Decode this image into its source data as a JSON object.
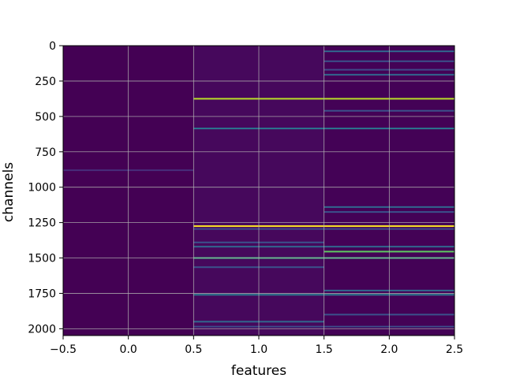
{
  "chart_data": {
    "type": "heatmap",
    "title": "",
    "xlabel": "features",
    "ylabel": "channels",
    "xlim": [
      -0.5,
      2.5
    ],
    "ylim": [
      2048,
      0
    ],
    "y_inverted": true,
    "colormap": "viridis",
    "grid": true,
    "x_ticks": [
      -0.5,
      0.0,
      0.5,
      1.0,
      1.5,
      2.0,
      2.5
    ],
    "x_tick_labels": [
      "−0.5",
      "0.0",
      "0.5",
      "1.0",
      "1.5",
      "2.0",
      "2.5"
    ],
    "y_ticks": [
      0,
      250,
      500,
      750,
      1000,
      1250,
      1500,
      1750,
      2000
    ],
    "y_tick_labels": [
      "0",
      "250",
      "500",
      "750",
      "1000",
      "1250",
      "1500",
      "1750",
      "2000"
    ],
    "columns": [
      0,
      1,
      2
    ],
    "column_background": [
      "#440154",
      "#46085c",
      "#440256"
    ],
    "highlight_rows": [
      {
        "channel": 40,
        "columns": [
          2
        ],
        "color": "#31688e"
      },
      {
        "channel": 110,
        "columns": [
          2
        ],
        "color": "#3b528b"
      },
      {
        "channel": 170,
        "columns": [
          2
        ],
        "color": "#3e4a89"
      },
      {
        "channel": 205,
        "columns": [
          2
        ],
        "color": "#31688e"
      },
      {
        "channel": 375,
        "columns": [
          1,
          2
        ],
        "color": "#b8de29"
      },
      {
        "channel": 460,
        "columns": [
          2
        ],
        "color": "#3b528b"
      },
      {
        "channel": 585,
        "columns": [
          1,
          2
        ],
        "color": "#2a788e"
      },
      {
        "channel": 880,
        "columns": [
          0
        ],
        "color": "#472d7b"
      },
      {
        "channel": 1140,
        "columns": [
          2
        ],
        "color": "#31688e"
      },
      {
        "channel": 1175,
        "columns": [
          2
        ],
        "color": "#3b528b"
      },
      {
        "channel": 1275,
        "columns": [
          1,
          2
        ],
        "color": "#fde725"
      },
      {
        "channel": 1295,
        "columns": [
          1,
          2
        ],
        "color": "#3e4a89"
      },
      {
        "channel": 1390,
        "columns": [
          1
        ],
        "color": "#3b528b"
      },
      {
        "channel": 1420,
        "columns": [
          1,
          2
        ],
        "color": "#31688e"
      },
      {
        "channel": 1455,
        "columns": [
          2
        ],
        "color": "#5ec962"
      },
      {
        "channel": 1500,
        "columns": [
          1,
          2
        ],
        "color": "#35b779"
      },
      {
        "channel": 1565,
        "columns": [
          1
        ],
        "color": "#3b528b"
      },
      {
        "channel": 1730,
        "columns": [
          2
        ],
        "color": "#31688e"
      },
      {
        "channel": 1760,
        "columns": [
          1,
          2
        ],
        "color": "#2a788e"
      },
      {
        "channel": 1900,
        "columns": [
          2
        ],
        "color": "#3b528b"
      },
      {
        "channel": 1950,
        "columns": [
          1
        ],
        "color": "#31688e"
      },
      {
        "channel": 1985,
        "columns": [
          1,
          2
        ],
        "color": "#3e4a89"
      }
    ]
  }
}
